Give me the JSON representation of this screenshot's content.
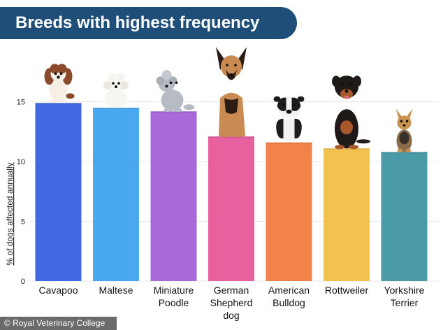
{
  "title": "Breeds with highest frequency",
  "credit": "© Royal Veterinary College",
  "chart_data": {
    "type": "bar",
    "title": "Breeds with highest frequency",
    "xlabel": "",
    "ylabel": "% of dogs affected annually",
    "ylim": [
      0,
      16.5
    ],
    "yticks": [
      0,
      5,
      10,
      15
    ],
    "grid": true,
    "categories": [
      [
        "Cavapoo"
      ],
      [
        "Maltese"
      ],
      [
        "Miniature",
        "Poodle"
      ],
      [
        "German",
        "Shepherd",
        "dog"
      ],
      [
        "American",
        "Bulldog"
      ],
      [
        "Rottweiler"
      ],
      [
        "Yorkshire",
        "Terrier"
      ]
    ],
    "values": [
      14.9,
      14.5,
      14.2,
      12.1,
      11.6,
      11.1,
      10.8
    ],
    "colors": [
      "#4169e1",
      "#4aa8f0",
      "#a86ad8",
      "#e8609e",
      "#f0824a",
      "#f2c24e",
      "#4a9aa8"
    ],
    "icons": [
      "cavapoo-dog-icon",
      "maltese-dog-icon",
      "poodle-dog-icon",
      "german-shepherd-dog-icon",
      "bulldog-dog-icon",
      "rottweiler-dog-icon",
      "yorkshire-terrier-dog-icon"
    ]
  }
}
